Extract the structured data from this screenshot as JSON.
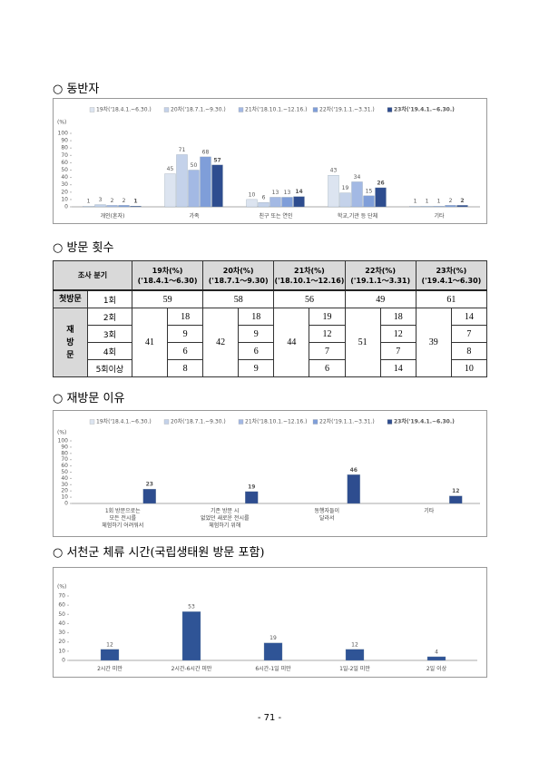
{
  "headings": [
    "○ 동반자",
    "○ 방문 횟수",
    "○ 재방문 이유",
    "○ 서천군 체류 시간(국립생태원 방문 포함)"
  ],
  "chart_data": [
    {
      "type": "bar",
      "ylabel": "(%)",
      "ylim": [
        0,
        100
      ],
      "yticks": [
        0,
        10,
        20,
        30,
        40,
        50,
        60,
        70,
        80,
        90,
        100
      ],
      "categories": [
        "개인(혼자)",
        "가족",
        "친구 또는 연인",
        "학교,기관 등 단체",
        "기타"
      ],
      "series": [
        {
          "name": "19차('18.4.1.~6.30.)",
          "color": "#dce4f0",
          "values": [
            1,
            45,
            10,
            43,
            1
          ]
        },
        {
          "name": "20차('18.7.1.~9.30.)",
          "color": "#c4d2ea",
          "values": [
            3,
            71,
            6,
            19,
            1
          ]
        },
        {
          "name": "21차('18.10.1.~12.16.)",
          "color": "#a3b9e4",
          "values": [
            2,
            50,
            13,
            34,
            1
          ]
        },
        {
          "name": "22차('19.1.1.~3.31.)",
          "color": "#7f9ed9",
          "values": [
            2,
            68,
            13,
            15,
            2
          ]
        },
        {
          "name": "23차('19.4.1.~6.30.)",
          "color": "#2e4d8f",
          "values": [
            1,
            57,
            14,
            26,
            2
          ]
        }
      ]
    },
    {
      "type": "bar",
      "ylabel": "(%)",
      "ylim": [
        0,
        100
      ],
      "yticks": [
        0,
        10,
        20,
        30,
        40,
        50,
        60,
        70,
        80,
        90,
        100
      ],
      "categories": [
        "1회 방문으로는\n모든 전시를\n체험하기 어려워서",
        "기존 방문 시\n없었던 새로운 전시를\n체험하기 위해",
        "동행자들이\n달라서",
        "기타"
      ],
      "series": [
        {
          "name": "19차('18.4.1.~6.30.)",
          "color": "#dce4f0",
          "values": [
            null,
            null,
            null,
            null
          ]
        },
        {
          "name": "20차('18.7.1.~9.30.)",
          "color": "#c4d2ea",
          "values": [
            null,
            null,
            null,
            null
          ]
        },
        {
          "name": "21차('18.10.1.~12.16.)",
          "color": "#a3b9e4",
          "values": [
            null,
            null,
            null,
            null
          ]
        },
        {
          "name": "22차('19.1.1.~3.31.)",
          "color": "#7f9ed9",
          "values": [
            null,
            null,
            null,
            null
          ]
        },
        {
          "name": "23차('19.4.1.~6.30.)",
          "color": "#2e4d8f",
          "values": [
            23,
            19,
            46,
            12
          ]
        }
      ]
    },
    {
      "type": "bar",
      "ylabel": "(%)",
      "ylim": [
        0,
        70
      ],
      "yticks": [
        0,
        10,
        20,
        30,
        40,
        50,
        60,
        70
      ],
      "color": "#2f5496",
      "categories": [
        "2시간 미만",
        "2시간-6시간 미만",
        "6시간-1일 미만",
        "1일-2일 미만",
        "2일 이상"
      ],
      "values": [
        12,
        53,
        19,
        12,
        4
      ]
    }
  ],
  "table": {
    "header": "조사 분기",
    "waves": [
      {
        "name": "19차(%)",
        "period": "('18.4.1～6.30)"
      },
      {
        "name": "20차(%)",
        "period": "('18.7.1～9.30)"
      },
      {
        "name": "21차(%)",
        "period": "('18.10.1～12.16)"
      },
      {
        "name": "22차(%)",
        "period": "('19.1.1～3.31)"
      },
      {
        "name": "23차(%)",
        "period": "('19.4.1～6.30)"
      }
    ],
    "first_visit": {
      "label": "첫방문",
      "sub": "1회",
      "values": [
        59,
        58,
        56,
        49,
        61
      ]
    },
    "revisit": {
      "label": "재\n방\n문",
      "subs": [
        "2회",
        "3회",
        "4회",
        "5회이상"
      ],
      "totals": [
        41,
        42,
        44,
        51,
        39
      ],
      "values": [
        [
          18,
          9,
          6,
          8
        ],
        [
          18,
          9,
          6,
          9
        ],
        [
          19,
          12,
          7,
          6
        ],
        [
          18,
          12,
          7,
          14
        ],
        [
          14,
          7,
          8,
          10
        ]
      ]
    }
  },
  "page_number": "- 71 -"
}
